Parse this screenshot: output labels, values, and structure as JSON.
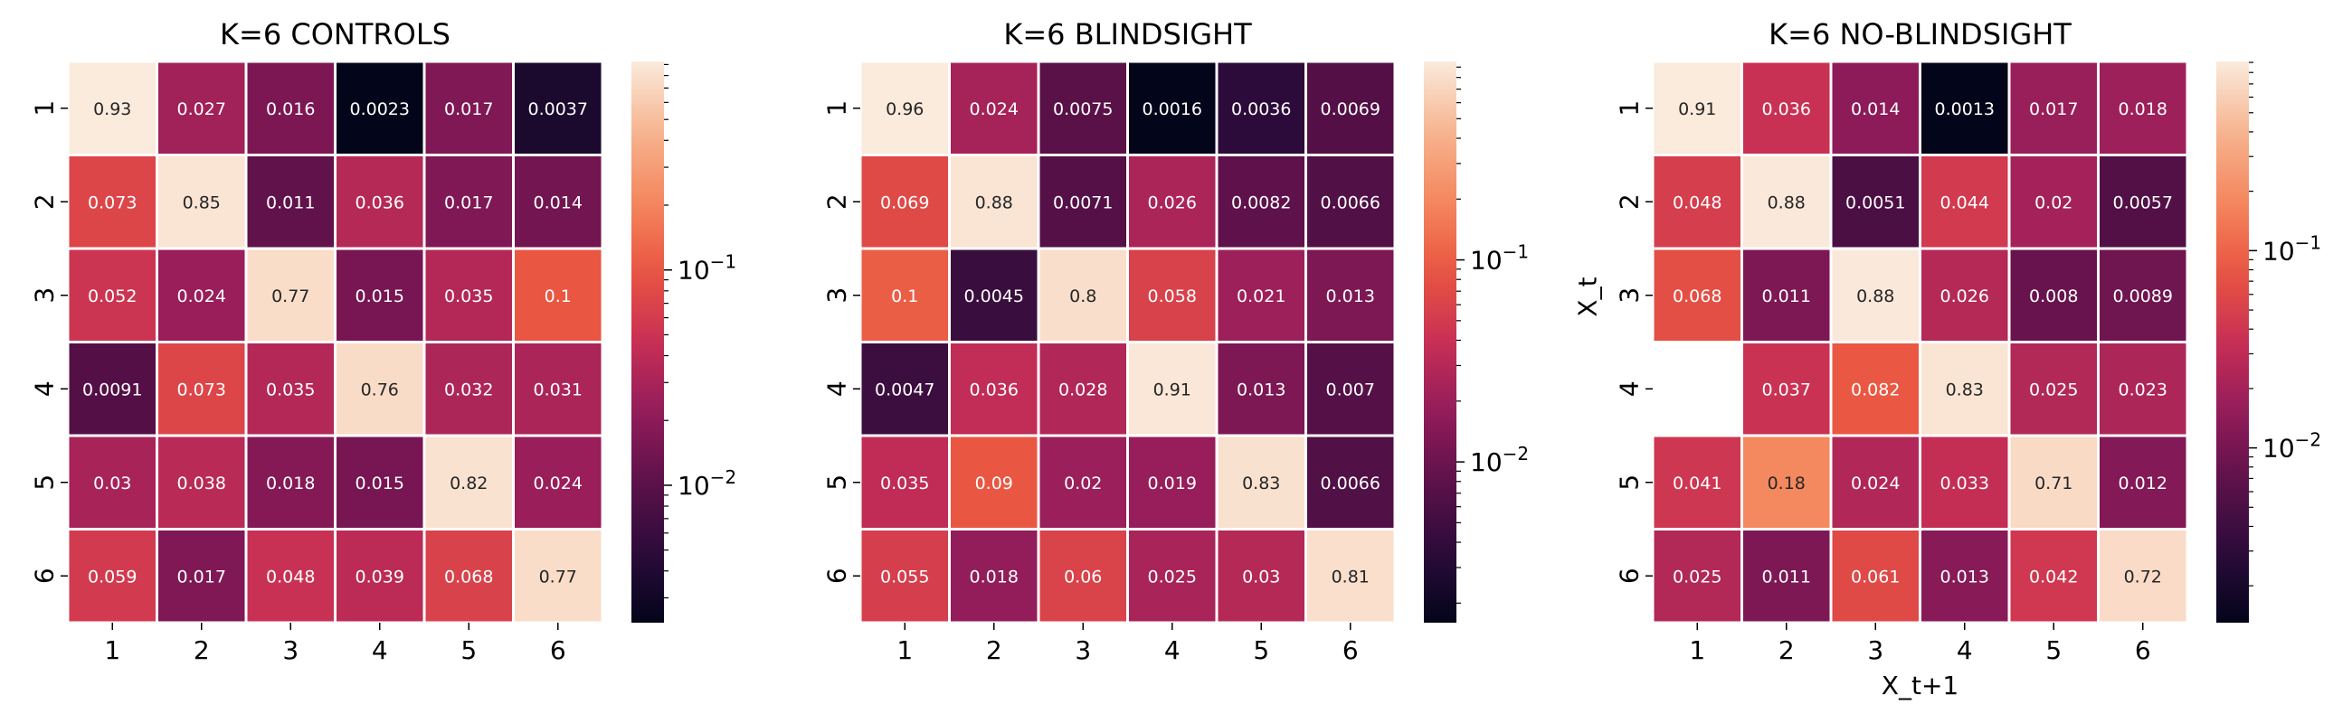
{
  "chart_data": [
    {
      "type": "heatmap",
      "title": "K=6 CONTROLS",
      "xlabel": "",
      "ylabel": "",
      "x_categories": [
        "1",
        "2",
        "3",
        "4",
        "5",
        "6"
      ],
      "y_categories": [
        "1",
        "2",
        "3",
        "4",
        "5",
        "6"
      ],
      "values": [
        [
          "0.93",
          "0.027",
          "0.016",
          "0.0023",
          "0.017",
          "0.0037"
        ],
        [
          "0.073",
          "0.85",
          "0.011",
          "0.036",
          "0.017",
          "0.014"
        ],
        [
          "0.052",
          "0.024",
          "0.77",
          "0.015",
          "0.035",
          "0.1"
        ],
        [
          "0.0091",
          "0.073",
          "0.035",
          "0.76",
          "0.032",
          "0.031"
        ],
        [
          "0.03",
          "0.038",
          "0.018",
          "0.015",
          "0.82",
          "0.024"
        ],
        [
          "0.059",
          "0.017",
          "0.048",
          "0.039",
          "0.068",
          "0.77"
        ]
      ],
      "colorbar": {
        "scale": "log",
        "range": [
          0.0023,
          0.93
        ],
        "tick_labels": [
          "10^-1",
          "10^-2"
        ]
      }
    },
    {
      "type": "heatmap",
      "title": "K=6 BLINDSIGHT",
      "xlabel": "",
      "ylabel": "",
      "x_categories": [
        "1",
        "2",
        "3",
        "4",
        "5",
        "6"
      ],
      "y_categories": [
        "1",
        "2",
        "3",
        "4",
        "5",
        "6"
      ],
      "values": [
        [
          "0.96",
          "0.024",
          "0.0075",
          "0.0016",
          "0.0036",
          "0.0069"
        ],
        [
          "0.069",
          "0.88",
          "0.0071",
          "0.026",
          "0.0082",
          "0.0066"
        ],
        [
          "0.1",
          "0.0045",
          "0.8",
          "0.058",
          "0.021",
          "0.013"
        ],
        [
          "0.0047",
          "0.036",
          "0.028",
          "0.91",
          "0.013",
          "0.007"
        ],
        [
          "0.035",
          "0.09",
          "0.02",
          "0.019",
          "0.83",
          "0.0066"
        ],
        [
          "0.055",
          "0.018",
          "0.06",
          "0.025",
          "0.03",
          "0.81"
        ]
      ],
      "colorbar": {
        "scale": "log",
        "range": [
          0.0016,
          0.96
        ],
        "tick_labels": [
          "10^-1",
          "10^-2"
        ]
      }
    },
    {
      "type": "heatmap",
      "title": "K=6 NO-BLINDSIGHT",
      "xlabel": "X_t+1",
      "ylabel": "X_t",
      "x_categories": [
        "1",
        "2",
        "3",
        "4",
        "5",
        "6"
      ],
      "y_categories": [
        "1",
        "2",
        "3",
        "4",
        "5",
        "6"
      ],
      "values": [
        [
          "0.91",
          "0.036",
          "0.014",
          "0.0013",
          "0.017",
          "0.018"
        ],
        [
          "0.048",
          "0.88",
          "0.0051",
          "0.044",
          "0.02",
          "0.0057"
        ],
        [
          "0.068",
          "0.011",
          "0.88",
          "0.026",
          "0.008",
          "0.0089"
        ],
        [
          "",
          "0.037",
          "0.082",
          "0.83",
          "0.025",
          "0.023"
        ],
        [
          "0.041",
          "0.18",
          "0.024",
          "0.033",
          "0.71",
          "0.012"
        ],
        [
          "0.025",
          "0.011",
          "0.061",
          "0.013",
          "0.042",
          "0.72"
        ]
      ],
      "colorbar": {
        "scale": "log",
        "range": [
          0.0013,
          0.91
        ],
        "tick_labels": [
          "10^-1",
          "10^-2"
        ]
      }
    }
  ],
  "colormap": {
    "name": "rocket",
    "stops": [
      "#03051a",
      "#2b0b3a",
      "#5c1149",
      "#921c5b",
      "#c72f55",
      "#e95541",
      "#f4875e",
      "#f6b48f",
      "#faebdd"
    ]
  }
}
